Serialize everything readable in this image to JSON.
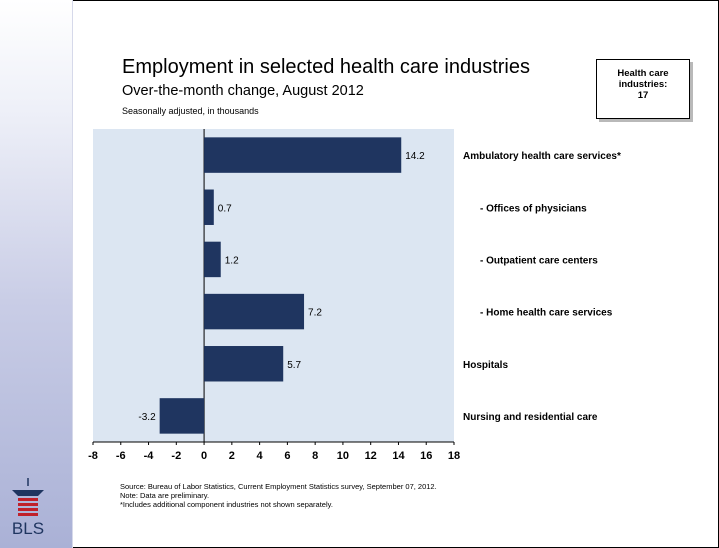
{
  "slide": {
    "title": "Employment in selected health care industries",
    "subtitle": "Over-the-month change, August 2012",
    "unit_note": "Seasonally adjusted, in thousands",
    "badge": {
      "line1": "Health care",
      "line2": "industries:",
      "line3": "17"
    },
    "footnotes": [
      "Source: Bureau of Labor Statistics, Current Employment Statistics survey, September 07, 2012.",
      "Note: Data are preliminary.",
      "*Includes additional component industries not shown separately."
    ],
    "logo_text": "BLS"
  },
  "colors": {
    "bar": "#1f3560",
    "plot_bg": "#dce6f2",
    "grid": "#ffffff"
  },
  "chart_data": {
    "type": "bar",
    "orientation": "horizontal",
    "categories": [
      "Ambulatory health care services*",
      "- Offices of physicians",
      "- Outpatient care centers",
      "- Home health care services",
      "Hospitals",
      "Nursing and residential care"
    ],
    "values": [
      14.2,
      0.7,
      1.2,
      7.2,
      5.7,
      -3.2
    ],
    "data_labels": [
      "14.2",
      "0.7",
      "1.2",
      "7.2",
      "5.7",
      "-3.2"
    ],
    "xlim": [
      -8,
      18
    ],
    "xticks": [
      -8,
      -6,
      -4,
      -2,
      0,
      2,
      4,
      6,
      8,
      10,
      12,
      14,
      16,
      18
    ],
    "xlabel": "",
    "ylabel": "",
    "grid": false,
    "legend": "none"
  }
}
